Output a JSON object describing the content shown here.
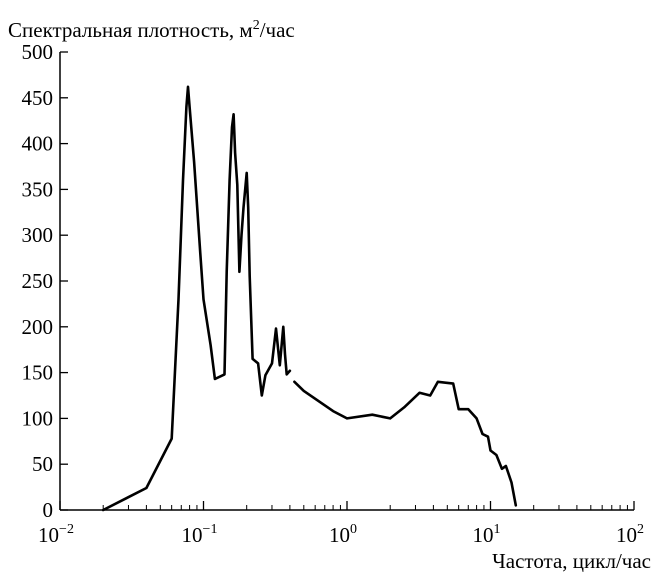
{
  "chart_data": {
    "type": "line",
    "ylabel": "Спектральная плотность, м",
    "ylabel_sup": "2",
    "ylabel_tail": "/час",
    "xlabel": "Частота, цикл/час",
    "x_scale": "log",
    "xlim": [
      0.01,
      100
    ],
    "ylim": [
      0,
      500
    ],
    "grid": false,
    "y_ticks": [
      "0",
      "50",
      "100",
      "150",
      "200",
      "250",
      "300",
      "350",
      "400",
      "450",
      "500"
    ],
    "x_ticks": [
      {
        "base": "10",
        "exp": "−2"
      },
      {
        "base": "10",
        "exp": "−1"
      },
      {
        "base": "10",
        "exp": "0"
      },
      {
        "base": "10",
        "exp": "1"
      },
      {
        "base": "10",
        "exp": "2"
      }
    ],
    "series": [
      {
        "color": "#000000",
        "segments": [
          [
            [
              0.02,
              0
            ],
            [
              0.04,
              24
            ],
            [
              0.06,
              78
            ],
            [
              0.067,
              230
            ],
            [
              0.072,
              360
            ],
            [
              0.076,
              440
            ],
            [
              0.078,
              462
            ],
            [
              0.08,
              440
            ],
            [
              0.086,
              380
            ],
            [
              0.095,
              280
            ],
            [
              0.1,
              230
            ],
            [
              0.112,
              180
            ],
            [
              0.12,
              143
            ],
            [
              0.14,
              148
            ],
            [
              0.145,
              260
            ],
            [
              0.152,
              360
            ],
            [
              0.158,
              418
            ],
            [
              0.162,
              432
            ],
            [
              0.166,
              390
            ],
            [
              0.172,
              355
            ],
            [
              0.178,
              260
            ],
            [
              0.184,
              300
            ],
            [
              0.19,
              330
            ],
            [
              0.2,
              368
            ],
            [
              0.205,
              330
            ],
            [
              0.21,
              255
            ],
            [
              0.22,
              165
            ],
            [
              0.24,
              160
            ],
            [
              0.255,
              125
            ],
            [
              0.27,
              147
            ],
            [
              0.3,
              160
            ],
            [
              0.32,
              198
            ],
            [
              0.34,
              158
            ],
            [
              0.36,
              200
            ],
            [
              0.37,
              170
            ],
            [
              0.38,
              148
            ],
            [
              0.4,
              152
            ]
          ],
          [
            [
              0.43,
              140
            ],
            [
              0.5,
              130
            ],
            [
              0.8,
              108
            ],
            [
              1.0,
              100
            ],
            [
              1.5,
              104
            ],
            [
              2.0,
              100
            ],
            [
              2.5,
              112
            ],
            [
              3.2,
              128
            ],
            [
              3.8,
              125
            ],
            [
              4.3,
              140
            ],
            [
              5.5,
              138
            ],
            [
              6.0,
              110
            ],
            [
              7.0,
              110
            ],
            [
              8.0,
              100
            ],
            [
              8.8,
              83
            ],
            [
              9.6,
              80
            ],
            [
              10.0,
              65
            ],
            [
              11.0,
              60
            ],
            [
              12.0,
              45
            ],
            [
              12.8,
              48
            ],
            [
              14.0,
              30
            ],
            [
              15.0,
              5
            ]
          ]
        ]
      }
    ]
  }
}
